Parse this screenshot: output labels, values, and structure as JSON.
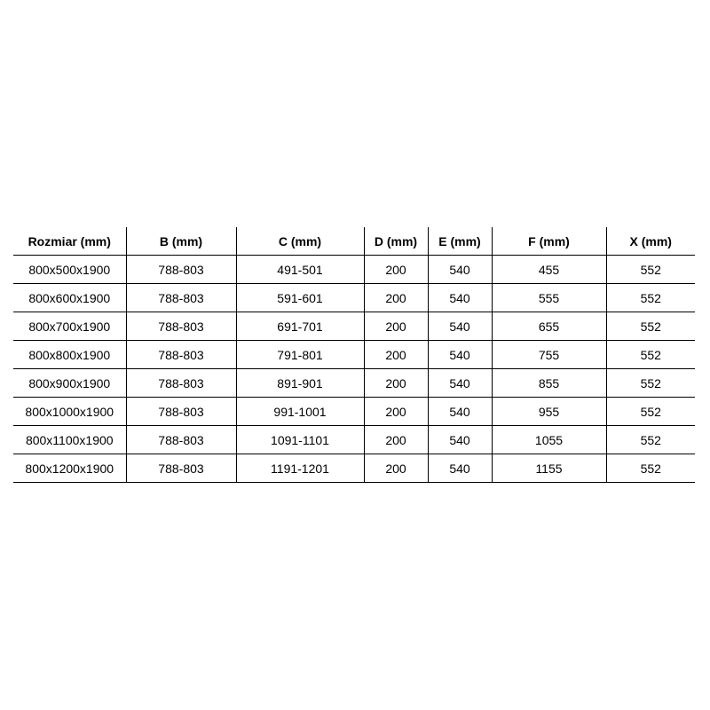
{
  "table": {
    "headers": [
      "Rozmiar (mm)",
      "B (mm)",
      "C (mm)",
      "D (mm)",
      "E (mm)",
      "F (mm)",
      "X (mm)"
    ],
    "rows": [
      [
        "800x500x1900",
        "788-803",
        "491-501",
        "200",
        "540",
        "455",
        "552"
      ],
      [
        "800x600x1900",
        "788-803",
        "591-601",
        "200",
        "540",
        "555",
        "552"
      ],
      [
        "800x700x1900",
        "788-803",
        "691-701",
        "200",
        "540",
        "655",
        "552"
      ],
      [
        "800x800x1900",
        "788-803",
        "791-801",
        "200",
        "540",
        "755",
        "552"
      ],
      [
        "800x900x1900",
        "788-803",
        "891-901",
        "200",
        "540",
        "855",
        "552"
      ],
      [
        "800x1000x1900",
        "788-803",
        "991-1001",
        "200",
        "540",
        "955",
        "552"
      ],
      [
        "800x1100x1900",
        "788-803",
        "1091-1101",
        "200",
        "540",
        "1055",
        "552"
      ],
      [
        "800x1200x1900",
        "788-803",
        "1191-1201",
        "200",
        "540",
        "1155",
        "552"
      ]
    ]
  }
}
